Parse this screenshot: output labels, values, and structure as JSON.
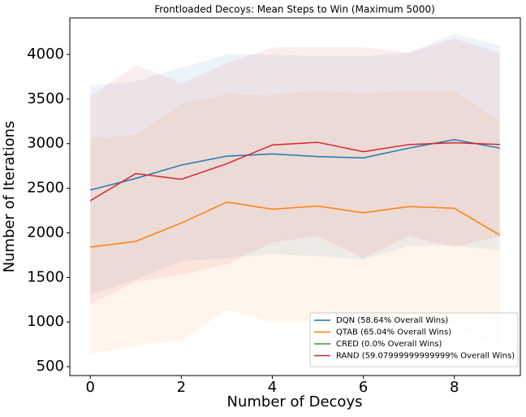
{
  "chart_data": {
    "type": "line",
    "title": "Frontloaded Decoys: Mean Steps to Win (Maximum 5000)",
    "xlabel": "Number of Decoys",
    "ylabel": "Number of Iterations",
    "x": [
      0,
      1,
      2,
      3,
      4,
      5,
      6,
      7,
      8,
      9
    ],
    "xlim": [
      -0.45,
      9.45
    ],
    "xticks": [
      0,
      2,
      4,
      6,
      8
    ],
    "ylim": [
      400,
      4410
    ],
    "yticks": [
      500,
      1000,
      1500,
      2000,
      2500,
      3000,
      3500,
      4000
    ],
    "legend": "lower right",
    "series": [
      {
        "name": "DQN (58.64% Overall Wins)",
        "color": "#1f77b4",
        "values": [
          2480,
          2610,
          2760,
          2860,
          2885,
          2855,
          2840,
          2950,
          3045,
          2950
        ],
        "upper": [
          3650,
          3700,
          3850,
          4000,
          4000,
          3980,
          3980,
          4020,
          4230,
          4100
        ],
        "lower": [
          1310,
          1480,
          1680,
          1720,
          1760,
          1740,
          1700,
          1850,
          1860,
          1800
        ]
      },
      {
        "name": "QTAB (65.04% Overall Wins)",
        "color": "#ff7f0e",
        "values": [
          1840,
          1905,
          2110,
          2345,
          2265,
          2300,
          2225,
          2295,
          2275,
          1975
        ],
        "upper": [
          3060,
          3100,
          3450,
          3560,
          3540,
          3600,
          3560,
          3600,
          3590,
          3250
        ],
        "lower": [
          640,
          740,
          790,
          1140,
          1000,
          1000,
          900,
          990,
          960,
          700
        ]
      },
      {
        "name": "CRED (0.0% Overall Wins)",
        "color": "#2ca02c",
        "values": [
          null,
          null,
          null,
          null,
          null,
          null,
          null,
          null,
          null,
          null
        ]
      },
      {
        "name": "RAND (59.07999999999999% Overall Wins)",
        "color": "#d62728",
        "values": [
          2360,
          2665,
          2600,
          2775,
          2985,
          3015,
          2910,
          2990,
          3010,
          2990
        ],
        "upper": [
          3530,
          3880,
          3680,
          3900,
          4080,
          4080,
          4080,
          4020,
          4180,
          4020
        ],
        "lower": [
          1200,
          1450,
          1530,
          1650,
          1890,
          1960,
          1720,
          1960,
          1840,
          1960
        ]
      }
    ]
  }
}
